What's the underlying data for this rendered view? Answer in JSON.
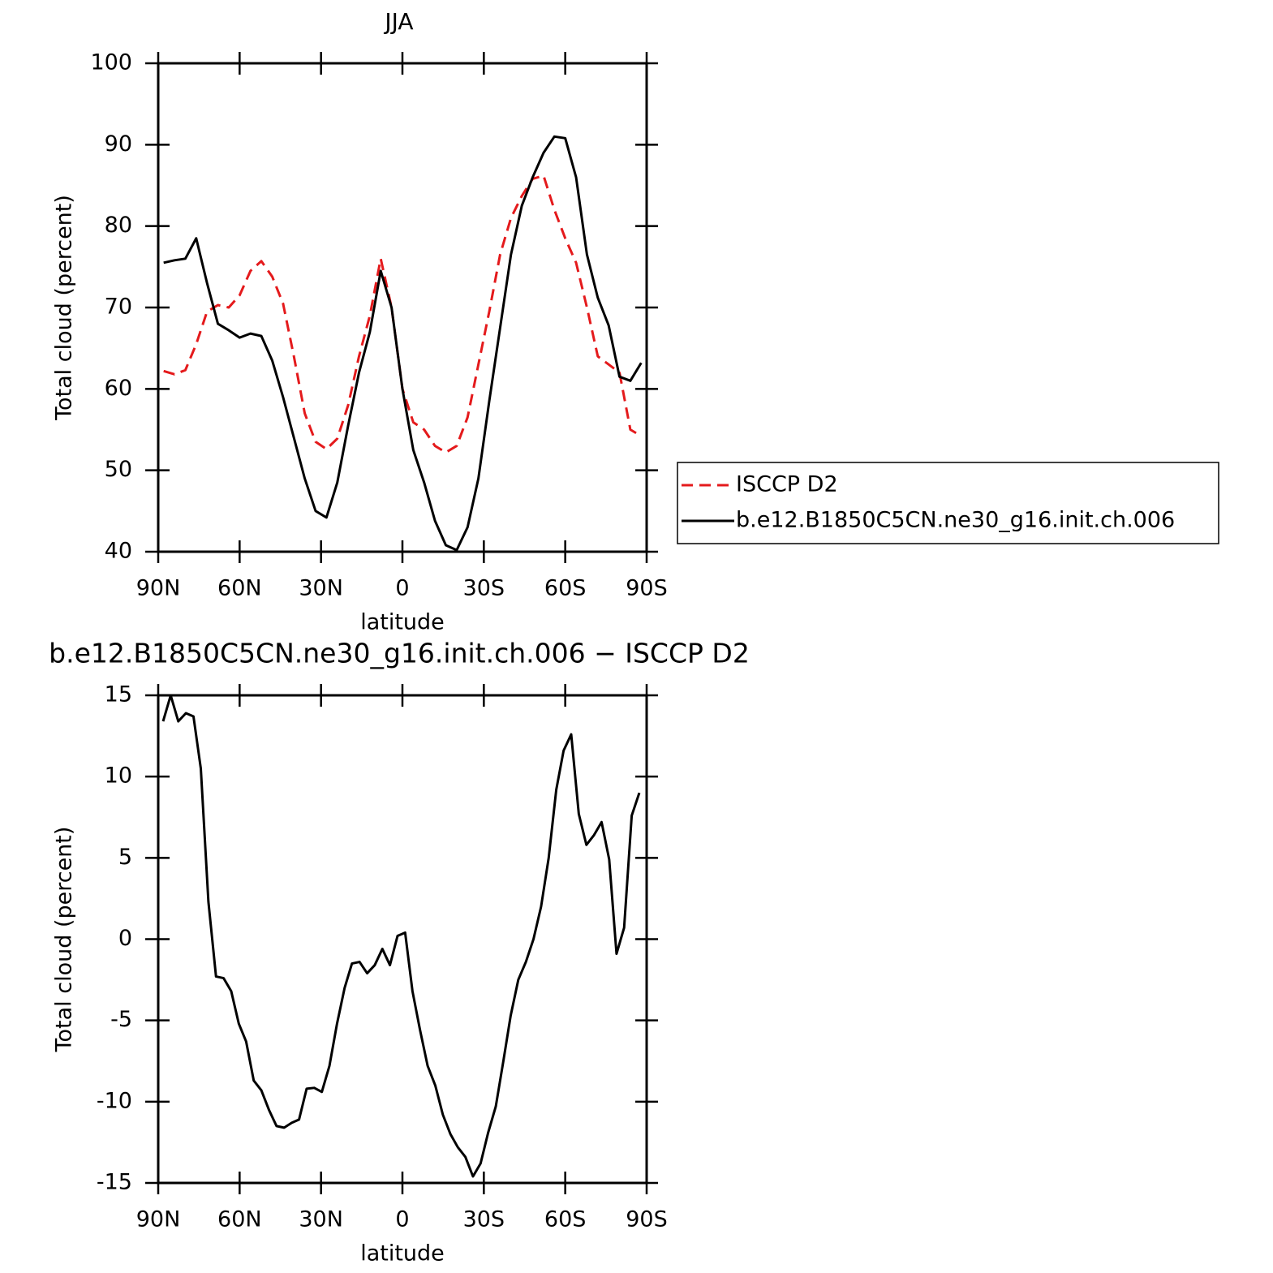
{
  "chart_data": [
    {
      "type": "line",
      "title": "JJA",
      "xlabel": "latitude",
      "ylabel": "Total cloud (percent)",
      "x": [
        88,
        84,
        80,
        76,
        72,
        68,
        64,
        60,
        56,
        52,
        48,
        44,
        40,
        36,
        32,
        28,
        24,
        20,
        16,
        12,
        8,
        4,
        0,
        -4,
        -8,
        -12,
        -16,
        -20,
        -24,
        -28,
        -32,
        -36,
        -40,
        -44,
        -48,
        -52,
        -56,
        -60,
        -64,
        -68,
        -72,
        -76,
        -80,
        -84,
        -88
      ],
      "series": [
        {
          "name": "ISCCP D2",
          "color": "#e41a1c",
          "dash": "dashed",
          "values": [
            62.2,
            61.8,
            62.3,
            65.5,
            69.5,
            70.3,
            70,
            71.5,
            74.5,
            75.7,
            73.8,
            70.5,
            64,
            57,
            53.5,
            52.6,
            53.9,
            58,
            64,
            69,
            76,
            70,
            60,
            55.9,
            55,
            53,
            52.2,
            53,
            56.5,
            63,
            69.5,
            76.5,
            81,
            83.7,
            85.8,
            86.2,
            82,
            78.5,
            75.5,
            70,
            64,
            63,
            62,
            55,
            54.2
          ]
        },
        {
          "name": "b.e12.B1850C5CN.ne30_g16.init.ch.006",
          "color": "#000000",
          "dash": "solid",
          "values": [
            75.5,
            75.8,
            76,
            78.5,
            73,
            68,
            67.2,
            66.3,
            66.8,
            66.5,
            63.5,
            59,
            54,
            49,
            45,
            44.2,
            48.5,
            55.5,
            62,
            67,
            74.5,
            70,
            60,
            52.5,
            48.5,
            43.8,
            40.8,
            40.2,
            43,
            49,
            58.5,
            67.5,
            76.5,
            82.5,
            86,
            89,
            91,
            90.8,
            86,
            76.5,
            71.2,
            67.8,
            61.5,
            61,
            63.2
          ]
        }
      ],
      "xlim": [
        90,
        -90
      ],
      "xticks": [
        {
          "value": 90,
          "label": "90N"
        },
        {
          "value": 60,
          "label": "60N"
        },
        {
          "value": 30,
          "label": "30N"
        },
        0,
        {
          "value": -30,
          "label": "30S"
        },
        {
          "value": -60,
          "label": "60S"
        },
        {
          "value": -90,
          "label": "90S"
        }
      ],
      "ylim": [
        40,
        100
      ],
      "yticks": [
        40,
        50,
        60,
        70,
        80,
        90,
        100
      ],
      "legend": "right"
    },
    {
      "type": "line",
      "title": "b.e12.B1850C5CN.ne30_g16.init.ch.006 − ISCCP D2",
      "xlabel": "latitude",
      "ylabel": "Total cloud (percent)",
      "x": [
        88.2,
        85.4,
        82.6,
        79.8,
        77.0,
        74.3,
        71.5,
        68.7,
        65.9,
        63.1,
        60.3,
        57.6,
        54.8,
        52.0,
        49.2,
        46.4,
        43.6,
        40.8,
        38.1,
        35.3,
        32.5,
        29.7,
        26.9,
        24.1,
        21.3,
        18.6,
        15.8,
        13.0,
        10.2,
        7.4,
        4.6,
        1.8,
        -1.0,
        -3.7,
        -6.5,
        -9.3,
        -12.1,
        -14.9,
        -17.7,
        -20.4,
        -23.2,
        -26.0,
        -28.8,
        -31.6,
        -34.4,
        -37.2,
        -39.9,
        -42.7,
        -45.5,
        -48.3,
        -51.1,
        -53.9,
        -56.7,
        -59.4,
        -62.2,
        -65.0,
        -67.8,
        -70.6,
        -73.4,
        -76.2,
        -78.9,
        -81.7,
        -84.5,
        -87.3
      ],
      "values": [
        13.4,
        15,
        13.4,
        13.9,
        13.7,
        10.5,
        2.3,
        -2.3,
        -2.4,
        -3.2,
        -5.2,
        -6.3,
        -8.7,
        -9.3,
        -10.5,
        -11.5,
        -11.6,
        -11.3,
        -11.1,
        -9.2,
        -9.15,
        -9.4,
        -7.8,
        -5.2,
        -3,
        -1.5,
        -1.4,
        -2.1,
        -1.6,
        -0.6,
        -1.6,
        0.2,
        0.4,
        -3.2,
        -5.6,
        -7.8,
        -9,
        -10.8,
        -12,
        -12.8,
        -13.4,
        -14.6,
        -13.8,
        -11.9,
        -10.3,
        -7.5,
        -4.7,
        -2.5,
        -1.4,
        0,
        2,
        5,
        9.2,
        11.6,
        12.6,
        7.7,
        5.8,
        6.4,
        7.2,
        4.9,
        -0.9,
        0.7,
        7.6,
        9
      ],
      "color": "#000000",
      "xlim": [
        90,
        -90
      ],
      "xticks": [
        {
          "value": 90,
          "label": "90N"
        },
        {
          "value": 60,
          "label": "60N"
        },
        {
          "value": 30,
          "label": "30N"
        },
        0,
        {
          "value": -30,
          "label": "30S"
        },
        {
          "value": -60,
          "label": "60S"
        },
        {
          "value": -90,
          "label": "90S"
        }
      ],
      "ylim": [
        -15,
        15
      ],
      "yticks": [
        -15,
        -10,
        -5,
        0,
        5,
        10,
        15
      ]
    }
  ]
}
